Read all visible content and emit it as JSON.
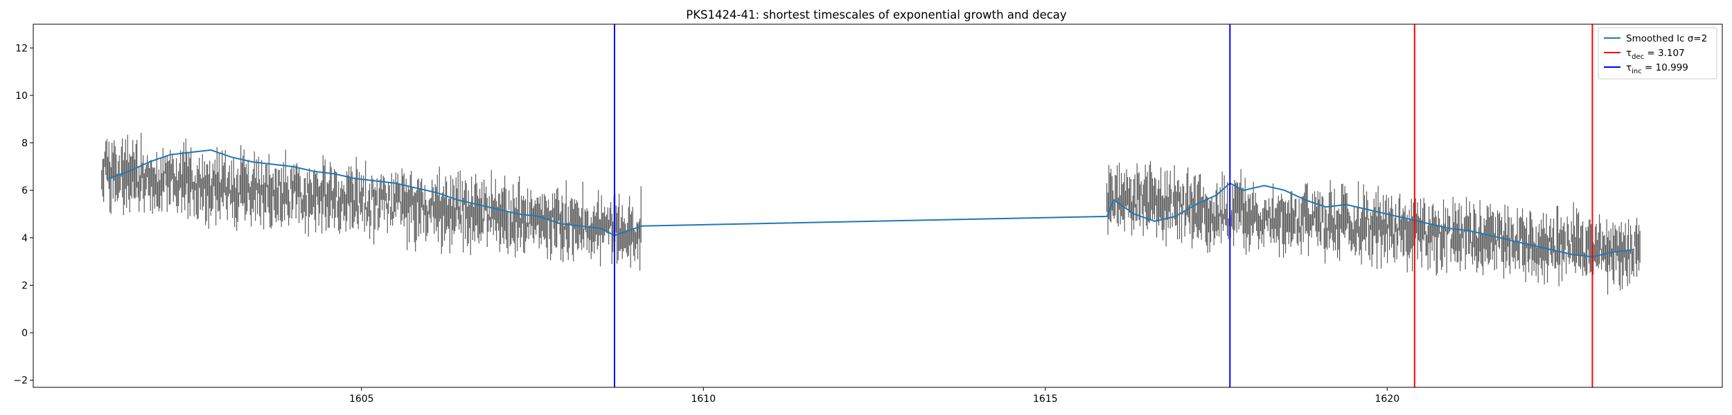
{
  "chart_data": {
    "type": "line",
    "title": "PKS1424-41: shortest timescales of exponential growth and decay",
    "xlabel": "",
    "ylabel": "",
    "xlim": [
      1600.2,
      1624.9
    ],
    "ylim": [
      -2.3,
      13.0
    ],
    "xticks": [
      1605,
      1610,
      1615,
      1620
    ],
    "yticks": [
      -2,
      0,
      2,
      4,
      6,
      8,
      10,
      12
    ],
    "grid": false,
    "legend_position": "top-right",
    "data_segments": [
      {
        "x_start": 1601.2,
        "x_end": 1609.1,
        "trend_start": 6.7,
        "trend_end": 4.3
      },
      {
        "x_start": 1615.9,
        "x_end": 1623.7,
        "trend_start": 5.6,
        "trend_end": 3.3
      }
    ],
    "series": [
      {
        "name": "Smoothed lc σ=2",
        "color": "#1f77b4",
        "x": [
          1601.3,
          1601.6,
          1601.9,
          1602.2,
          1602.5,
          1602.8,
          1603.1,
          1603.4,
          1603.7,
          1604.0,
          1604.3,
          1604.6,
          1604.9,
          1605.2,
          1605.5,
          1605.8,
          1606.1,
          1606.4,
          1606.7,
          1607.0,
          1607.3,
          1607.6,
          1607.9,
          1608.2,
          1608.5,
          1608.7,
          1608.9,
          1609.1,
          1615.9,
          1616.0,
          1616.3,
          1616.6,
          1616.9,
          1617.2,
          1617.5,
          1617.7,
          1617.9,
          1618.2,
          1618.5,
          1618.8,
          1619.1,
          1619.4,
          1619.7,
          1620.0,
          1620.3,
          1620.6,
          1620.9,
          1621.2,
          1621.5,
          1621.8,
          1622.1,
          1622.4,
          1622.7,
          1623.0,
          1623.3,
          1623.6
        ],
        "y": [
          6.5,
          6.8,
          7.2,
          7.5,
          7.6,
          7.7,
          7.4,
          7.2,
          7.1,
          7.0,
          6.8,
          6.7,
          6.5,
          6.4,
          6.3,
          6.1,
          5.9,
          5.6,
          5.4,
          5.2,
          5.0,
          4.9,
          4.6,
          4.5,
          4.4,
          4.1,
          4.3,
          4.5,
          4.9,
          5.6,
          5.0,
          4.7,
          4.9,
          5.4,
          5.8,
          6.3,
          6.0,
          6.2,
          6.0,
          5.6,
          5.3,
          5.4,
          5.2,
          5.0,
          4.8,
          4.6,
          4.4,
          4.3,
          4.1,
          3.9,
          3.7,
          3.5,
          3.3,
          3.2,
          3.4,
          3.5
        ]
      },
      {
        "name": "τ_dec = 3.107",
        "color": "#ff0000",
        "vlines": [
          1620.4,
          1623.0
        ]
      },
      {
        "name": "τ_inc = 10.999",
        "color": "#0000ff",
        "vlines": [
          1608.7,
          1617.7
        ]
      }
    ],
    "legend": [
      {
        "symbol": "",
        "sub": "",
        "text": "Smoothed lc σ=2",
        "color": "#1f77b4"
      },
      {
        "symbol": "τ",
        "sub": "dec",
        "text": " = 3.107",
        "color": "#ff0000"
      },
      {
        "symbol": "τ",
        "sub": "inc",
        "text": " = 10.999",
        "color": "#0000ff"
      }
    ],
    "errorbar_color": "#3a3a3a"
  }
}
